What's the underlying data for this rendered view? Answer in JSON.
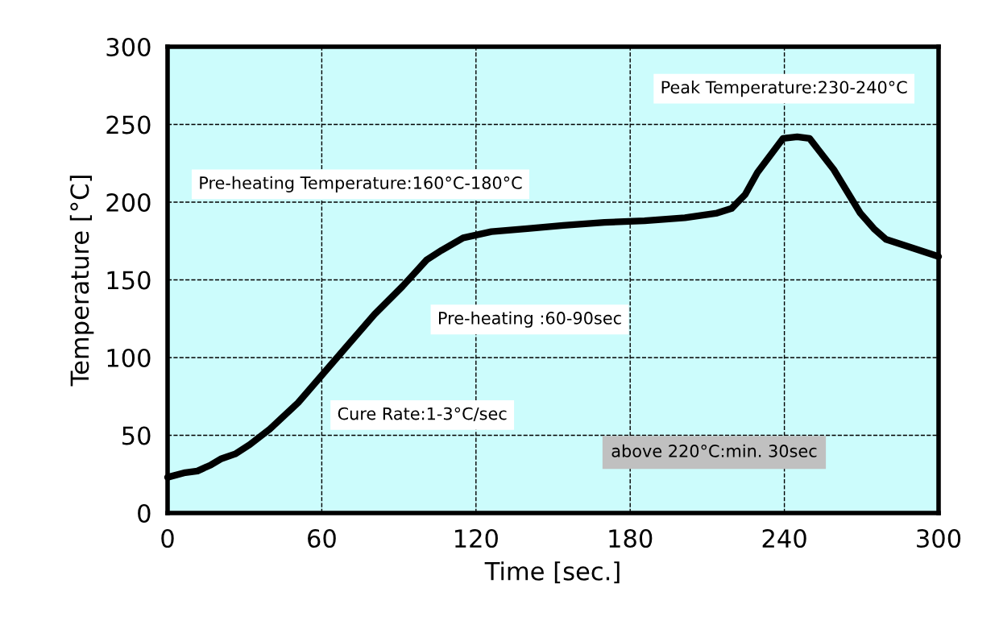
{
  "chart_data": {
    "type": "line",
    "xlabel": "Time [sec.]",
    "ylabel": "Temperature [°C]",
    "xlim": [
      0,
      300
    ],
    "ylim": [
      0,
      300
    ],
    "xticks": [
      0,
      60,
      120,
      180,
      240,
      300
    ],
    "yticks": [
      0,
      50,
      100,
      150,
      200,
      250,
      300
    ],
    "grid": true,
    "series": [
      {
        "color": "#000000",
        "x": [
          0,
          6.9,
          11.6,
          16.9,
          21,
          26.3,
          32,
          39.8,
          50.8,
          60.2,
          69.6,
          80.6,
          91.5,
          100.9,
          106.6,
          115,
          126,
          140,
          154,
          170,
          185.6,
          201.3,
          213.8,
          219.5,
          224.8,
          229.5,
          239.5,
          245,
          249.8,
          259.2,
          269.5,
          274.8,
          279.6,
          289,
          300
        ],
        "values": [
          23,
          26,
          27,
          31,
          35,
          38,
          44,
          54,
          71,
          89,
          107,
          128,
          146,
          163,
          169,
          177,
          181,
          183,
          185,
          187,
          188,
          190,
          193,
          196,
          205,
          219,
          241,
          242,
          241,
          221,
          193,
          183,
          176,
          171,
          165
        ]
      }
    ],
    "annotations": [
      "Peak Temperature:230-240°C",
      "Pre-heating Temperature:160°C-180°C",
      "Pre-heating :60-90sec",
      "Cure Rate:1-3°C/sec",
      "above 220°C:min. 30sec"
    ]
  }
}
